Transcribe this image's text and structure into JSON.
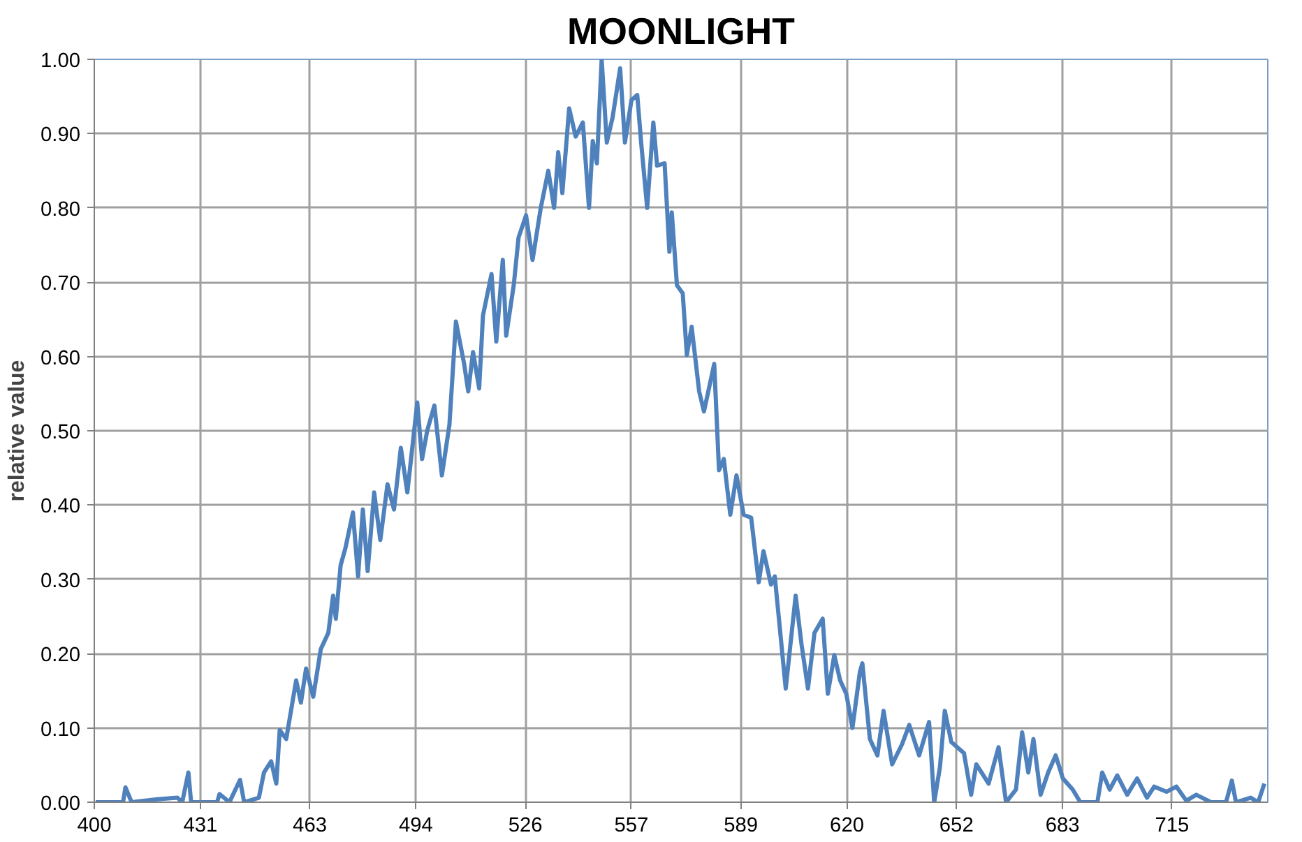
{
  "chart_data": {
    "type": "line",
    "title": "MOONLIGHT",
    "ylabel": "relative value",
    "xlim": [
      400,
      743
    ],
    "xticks": [
      400,
      431,
      463,
      494,
      526,
      557,
      589,
      620,
      652,
      683,
      715
    ],
    "ylim": [
      0,
      1
    ],
    "yticks": [
      {
        "value": 0,
        "label": "0.00"
      },
      {
        "value": 0.1,
        "label": "0.10"
      },
      {
        "value": 0.2,
        "label": "0.20"
      },
      {
        "value": 0.3,
        "label": "0.30"
      },
      {
        "value": 0.4,
        "label": "0.40"
      },
      {
        "value": 0.5,
        "label": "0.50"
      },
      {
        "value": 0.6,
        "label": "0.60"
      },
      {
        "value": 0.7,
        "label": "0.70"
      },
      {
        "value": 0.8,
        "label": "0.80"
      },
      {
        "value": 0.9,
        "label": "0.90"
      },
      {
        "value": 1.0,
        "label": "1.00"
      }
    ],
    "grid": true,
    "marker": "none",
    "line_style": "solid",
    "series": [
      {
        "color": "#4f81bd",
        "x": [
          400.4,
          408.4,
          409.1,
          410.9,
          418.5,
          424.3,
          425.7,
          427.5,
          428.3,
          435.9,
          436.6,
          439.5,
          442.6,
          443.8,
          448.1,
          449.6,
          451.7,
          453.2,
          454.2,
          456.1,
          459.0,
          460.4,
          461.9,
          464.0,
          466.2,
          468.4,
          469.8,
          470.6,
          472.0,
          473.4,
          475.6,
          477.1,
          478.5,
          479.9,
          481.8,
          483.6,
          485.7,
          487.6,
          489.6,
          491.5,
          494.4,
          495.8,
          497.3,
          499.4,
          501.6,
          503.8,
          505.7,
          508.1,
          509.3,
          510.7,
          512.5,
          513.6,
          516.1,
          517.5,
          519.4,
          520.4,
          522.6,
          524.0,
          526.2,
          528.1,
          530.5,
          532.7,
          534.4,
          535.6,
          536.8,
          538.8,
          540.7,
          542.8,
          544.6,
          545.7,
          546.9,
          548.3,
          549.8,
          551.5,
          553.7,
          555.1,
          557.0,
          558.7,
          559.9,
          561.6,
          563.4,
          564.5,
          566.7,
          568.1,
          568.8,
          570.3,
          572.0,
          573.2,
          574.6,
          576.8,
          578.2,
          581.2,
          582.6,
          584.0,
          585.9,
          587.7,
          589.8,
          592.0,
          594.2,
          595.6,
          597.8,
          598.9,
          602.1,
          605.0,
          606.7,
          608.6,
          610.5,
          612.9,
          614.4,
          616.3,
          618.0,
          619.8,
          621.6,
          623.8,
          624.5,
          626.7,
          628.9,
          630.7,
          633.2,
          636.1,
          638.2,
          641.1,
          644.0,
          645.5,
          647.2,
          648.6,
          650.5,
          654.2,
          656.3,
          657.8,
          661.4,
          664.3,
          666.5,
          669.4,
          671.2,
          673.0,
          674.5,
          676.6,
          678.8,
          681.0,
          683.1,
          686.0,
          688.2,
          693.2,
          694.6,
          696.8,
          699.0,
          701.9,
          704.8,
          707.7,
          709.8,
          713.4,
          716.3,
          719.2,
          722.1,
          726.4,
          730.8,
          732.5,
          733.7,
          738.0,
          740.2,
          742.0
        ],
        "values": [
          0,
          0,
          0.02,
          0,
          0.004,
          0.006,
          0,
          0.04,
          0,
          0,
          0.011,
          0,
          0.03,
          0,
          0.006,
          0.04,
          0.055,
          0.025,
          0.097,
          0.085,
          0.164,
          0.134,
          0.18,
          0.142,
          0.206,
          0.228,
          0.278,
          0.247,
          0.319,
          0.342,
          0.39,
          0.304,
          0.394,
          0.311,
          0.417,
          0.353,
          0.428,
          0.394,
          0.477,
          0.417,
          0.538,
          0.462,
          0.5,
          0.534,
          0.44,
          0.508,
          0.647,
          0.59,
          0.553,
          0.606,
          0.557,
          0.655,
          0.711,
          0.62,
          0.73,
          0.628,
          0.696,
          0.76,
          0.79,
          0.73,
          0.8,
          0.85,
          0.8,
          0.875,
          0.82,
          0.934,
          0.896,
          0.915,
          0.8,
          0.89,
          0.86,
          1.0,
          0.888,
          0.922,
          0.988,
          0.888,
          0.945,
          0.952,
          0.885,
          0.8,
          0.915,
          0.857,
          0.86,
          0.741,
          0.794,
          0.696,
          0.685,
          0.602,
          0.64,
          0.553,
          0.526,
          0.59,
          0.447,
          0.462,
          0.387,
          0.44,
          0.387,
          0.383,
          0.296,
          0.338,
          0.293,
          0.304,
          0.153,
          0.278,
          0.213,
          0.153,
          0.228,
          0.247,
          0.146,
          0.198,
          0.164,
          0.146,
          0.1,
          0.176,
          0.187,
          0.085,
          0.063,
          0.123,
          0.051,
          0.078,
          0.104,
          0.063,
          0.108,
          0,
          0.048,
          0.123,
          0.081,
          0.066,
          0.01,
          0.051,
          0.025,
          0.074,
          0,
          0.017,
          0.094,
          0.04,
          0.085,
          0.01,
          0.04,
          0.063,
          0.032,
          0.017,
          0,
          0,
          0.04,
          0.017,
          0.036,
          0.01,
          0.032,
          0.006,
          0.021,
          0.014,
          0.021,
          0.002,
          0.01,
          0,
          0,
          0.029,
          0,
          0.006,
          0,
          0.025
        ]
      }
    ]
  }
}
